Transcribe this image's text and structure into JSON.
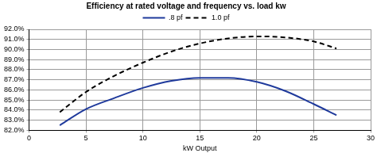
{
  "chart_data": {
    "type": "line",
    "title": "Efficiency at rated voltage and frequency vs. load kw",
    "x_label": "kW Output",
    "xlim": [
      0,
      30
    ],
    "xticks": [
      0,
      5,
      10,
      15,
      20,
      25,
      30
    ],
    "ylim": [
      82,
      92
    ],
    "yticks": [
      {
        "value": 82,
        "label": "82.0%"
      },
      {
        "value": 83,
        "label": "83.0%"
      },
      {
        "value": 84,
        "label": "84.0%"
      },
      {
        "value": 85,
        "label": "85.0%"
      },
      {
        "value": 86,
        "label": "86.0%"
      },
      {
        "value": 87,
        "label": "87.0%"
      },
      {
        "value": 88,
        "label": "88.0%"
      },
      {
        "value": 89,
        "label": "89.0%"
      },
      {
        "value": 90,
        "label": "90.0%"
      },
      {
        "value": 91,
        "label": "91.0%"
      },
      {
        "value": 92,
        "label": "92.0%"
      }
    ],
    "grid": true,
    "legend": "top",
    "series": [
      {
        "name": ".8 pf",
        "color": "#1f3a9c",
        "line_style": "solid",
        "marker": "none",
        "x": [
          2.7,
          5,
          7.5,
          10,
          12.5,
          15,
          17.5,
          20,
          22.5,
          25,
          27
        ],
        "values": [
          82.5,
          84.1,
          85.2,
          86.2,
          86.9,
          87.2,
          87.2,
          86.8,
          85.9,
          84.6,
          83.5
        ]
      },
      {
        "name": "1.0 pf",
        "color": "#000000",
        "line_style": "dashed",
        "marker": "none",
        "x": [
          2.7,
          5,
          7.5,
          10,
          12.5,
          15,
          17.5,
          20,
          22.5,
          25,
          27
        ],
        "values": [
          83.8,
          85.8,
          87.4,
          88.7,
          89.8,
          90.6,
          91.1,
          91.3,
          91.2,
          90.8,
          90.1
        ]
      }
    ]
  }
}
